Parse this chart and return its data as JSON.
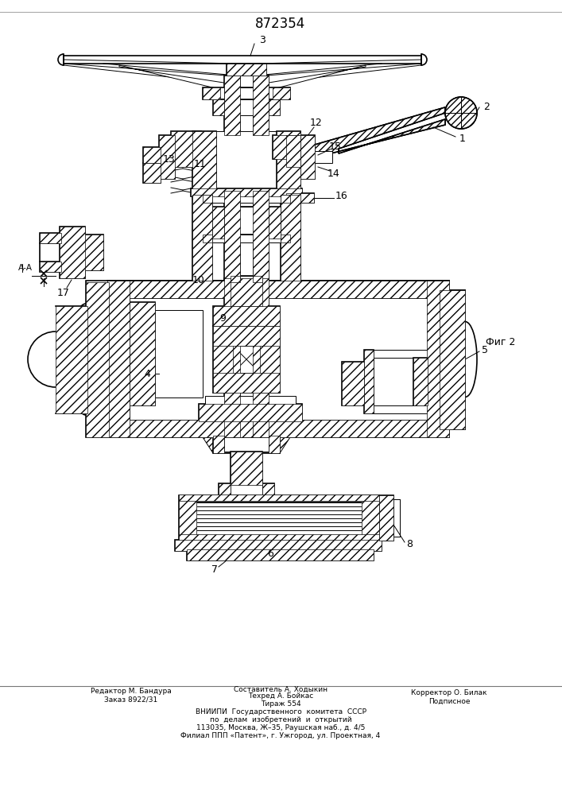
{
  "patent_number": "872354",
  "fig_label": "Фиг 2",
  "background_color": "#ffffff",
  "line_color": "#000000",
  "footer_editor": "Редактор М. Бандура",
  "footer_order": "Заказ 8922/31",
  "footer_composer": "Составитель А. Ходыкин",
  "footer_techred": "Техред А. Бойкас",
  "footer_tirazh": "Тираж 554",
  "footer_corrector": "Корректор О. Билак",
  "footer_podpisnoe": "Подписное",
  "footer_vniipи": "ВНИИПИ  Государственного  комитета  СССР",
  "footer_po_delam": "по  делам  изобретений  и  открытий",
  "footer_address": "113035, Москва, Ж–35, Раушская наб., д. 4/5",
  "footer_filial": "Филиал ППП «Патент», г. Ужгород, ул. Проектная, 4"
}
